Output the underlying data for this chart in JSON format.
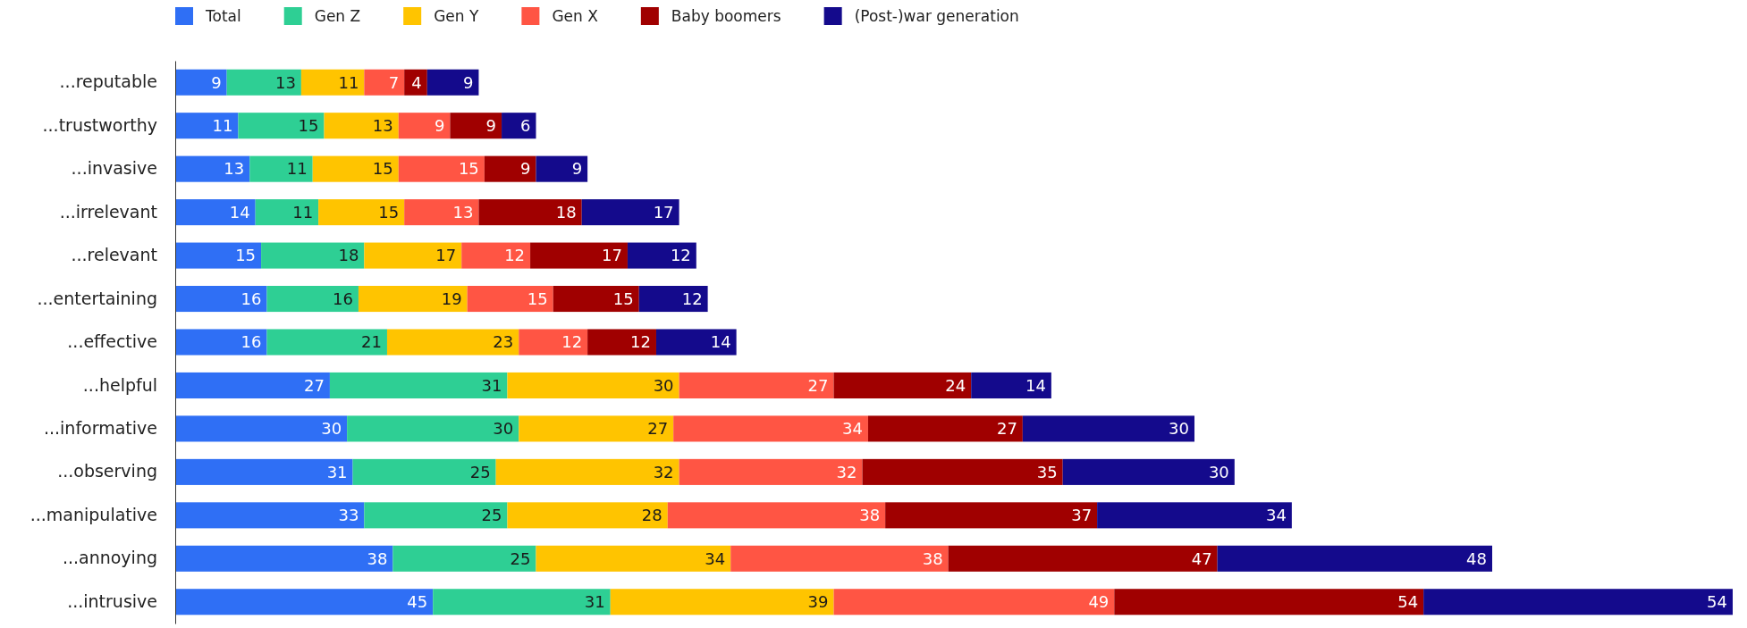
{
  "chart_data": {
    "type": "bar",
    "orientation": "horizontal",
    "stacked": true,
    "data_labels": true,
    "legend": "top left",
    "categories": [
      "...reputable",
      "...trustworthy",
      "...invasive",
      "...irrelevant",
      "...relevant",
      "...entertaining",
      "...effective",
      "...helpful",
      "...informative",
      "...observing",
      "...manipulative",
      "...annoying",
      "...intrusive"
    ],
    "series": [
      {
        "name": "Total",
        "color": "#2f6ff5",
        "values": [
          9,
          11,
          13,
          14,
          15,
          16,
          16,
          27,
          30,
          31,
          33,
          38,
          45
        ]
      },
      {
        "name": "Gen Z",
        "color": "#2ecf94",
        "values": [
          13,
          15,
          11,
          11,
          18,
          16,
          21,
          31,
          30,
          25,
          25,
          25,
          31
        ]
      },
      {
        "name": "Gen Y",
        "color": "#ffc400",
        "values": [
          11,
          13,
          15,
          15,
          17,
          19,
          23,
          30,
          27,
          32,
          28,
          34,
          39
        ]
      },
      {
        "name": "Gen X",
        "color": "#ff5544",
        "values": [
          7,
          9,
          15,
          13,
          12,
          15,
          12,
          27,
          34,
          32,
          38,
          38,
          49
        ]
      },
      {
        "name": "Baby boomers",
        "color": "#a00000",
        "values": [
          4,
          9,
          9,
          18,
          17,
          15,
          12,
          24,
          27,
          35,
          37,
          47,
          54
        ]
      },
      {
        "name": "(Post-)war generation",
        "color": "#140a8c",
        "values": [
          9,
          6,
          9,
          17,
          12,
          12,
          14,
          14,
          30,
          30,
          34,
          48,
          54
        ]
      }
    ]
  }
}
